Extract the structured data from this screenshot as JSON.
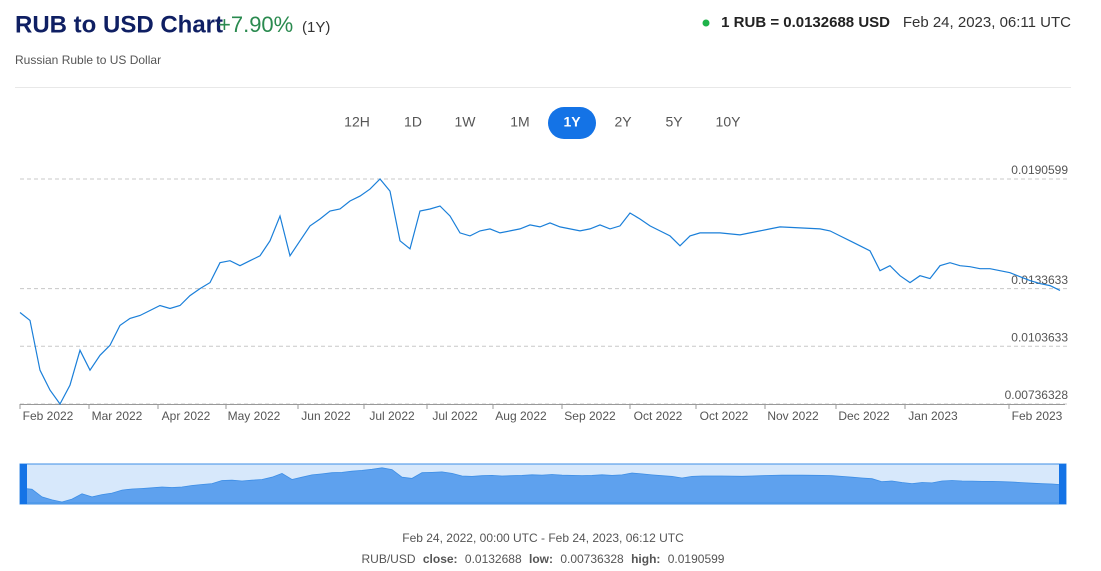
{
  "header": {
    "title": "RUB to USD Chart",
    "change": "+7.90%",
    "period": "(1Y)",
    "subtitle": "Russian Ruble to US Dollar",
    "rate": "1 RUB = 0.0132688 USD",
    "timestamp": "Feb 24, 2023, 06:11 UTC"
  },
  "ranges": [
    "12H",
    "1D",
    "1W",
    "1M",
    "1Y",
    "2Y",
    "5Y",
    "10Y"
  ],
  "active_range": "1Y",
  "chart_data": {
    "type": "line",
    "color": "#1a7fd9",
    "grid": true,
    "ylim": [
      0.00736328,
      0.0190599
    ],
    "yticks": [
      0.00736328,
      0.0103633,
      0.0133633,
      0.0190599
    ],
    "x_labels": [
      "Feb 2022",
      "Mar 2022",
      "Apr 2022",
      "May 2022",
      "Jun 2022",
      "Jul 2022",
      "Jul 2022",
      "Aug 2022",
      "Sep 2022",
      "Oct 2022",
      "Oct 2022",
      "Nov 2022",
      "Dec 2022",
      "Jan 2023",
      "Feb 2023"
    ],
    "values": [
      0.012121,
      0.011707,
      0.009121,
      0.008087,
      0.0073633,
      0.008346,
      0.010156,
      0.009121,
      0.009897,
      0.010414,
      0.011449,
      0.011811,
      0.011966,
      0.012225,
      0.012483,
      0.012328,
      0.012483,
      0.013,
      0.013363,
      0.013673,
      0.014707,
      0.014811,
      0.014552,
      0.014811,
      0.015069,
      0.015845,
      0.017138,
      0.015069,
      0.015845,
      0.016621,
      0.016983,
      0.017397,
      0.0175,
      0.017914,
      0.018172,
      0.018535,
      0.0190599,
      0.018431,
      0.015845,
      0.015431,
      0.017397,
      0.0175,
      0.017655,
      0.017138,
      0.016259,
      0.016104,
      0.016362,
      0.016466,
      0.016259,
      0.016362,
      0.016466,
      0.016673,
      0.016569,
      0.016776,
      0.016569,
      0.016466,
      0.016362,
      0.016466,
      0.016673,
      0.016466,
      0.016621,
      0.017293,
      0.016983,
      0.016621,
      0.016362,
      0.016104,
      0.015586,
      0.016104,
      0.016259,
      0.016259,
      0.016259,
      0.016207,
      0.016155,
      0.016259,
      0.016362,
      0.016466,
      0.016569,
      0.016543,
      0.016517,
      0.016492,
      0.016466,
      0.016362,
      0.016104,
      0.015845,
      0.015586,
      0.015328,
      0.014293,
      0.014552,
      0.014035,
      0.013673,
      0.014035,
      0.01388,
      0.014552,
      0.014707,
      0.014552,
      0.0145,
      0.014397,
      0.014397,
      0.014293,
      0.01419,
      0.013983,
      0.013776,
      0.013621,
      0.013518,
      0.0132688
    ]
  },
  "footer": {
    "range": "Feb 24, 2022, 00:00 UTC - Feb 24, 2023, 06:12 UTC",
    "pair": "RUB/USD",
    "close_label": "close:",
    "close": "0.0132688",
    "low_label": "low:",
    "low": "0.00736328",
    "high_label": "high:",
    "high": "0.0190599"
  }
}
